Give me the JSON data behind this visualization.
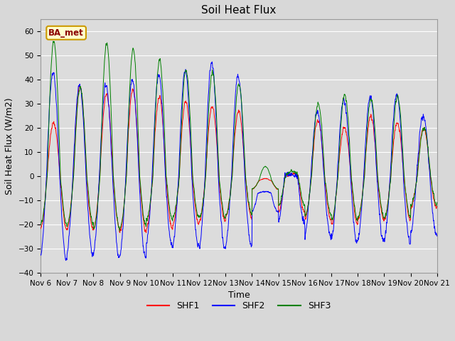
{
  "title": "Soil Heat Flux",
  "ylabel": "Soil Heat Flux (W/m2)",
  "xlabel": "Time",
  "ylim": [
    -40,
    65
  ],
  "yticks": [
    -40,
    -30,
    -20,
    -10,
    0,
    10,
    20,
    30,
    40,
    50,
    60
  ],
  "fig_bg": "#d8d8d8",
  "plot_bg": "#dcdcdc",
  "grid_color": "white",
  "shf1_color": "red",
  "shf2_color": "blue",
  "shf3_color": "green",
  "title_fontsize": 11,
  "label_fontsize": 9,
  "tick_fontsize": 7.5,
  "legend_label": "BA_met",
  "legend_bg": "#ffffcc",
  "legend_border": "#cc9900",
  "n_days": 15,
  "start_day": 6,
  "ppd": 144
}
